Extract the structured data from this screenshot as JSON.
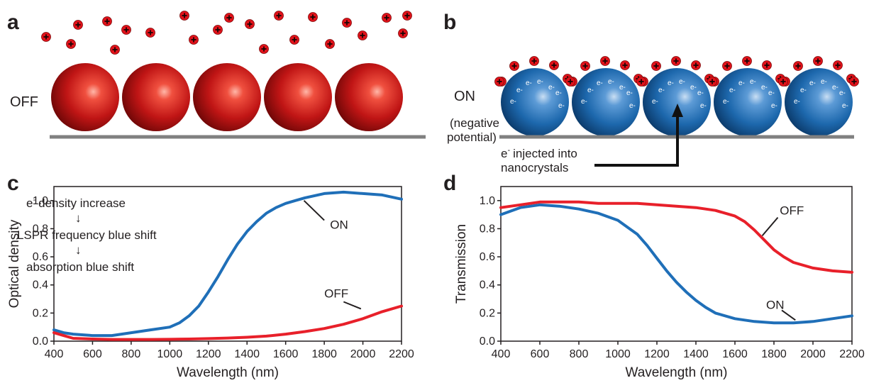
{
  "panels": {
    "a": {
      "letter": "a",
      "state": "OFF"
    },
    "b": {
      "letter": "b",
      "state": "ON",
      "state_sub1": "(negative",
      "state_sub2": "potential)",
      "electron_symbol": "e",
      "electron_charge": "-",
      "injection_line1": "injected into",
      "injection_line2": "nanocrystals"
    },
    "c": {
      "letter": "c",
      "annotation_line1_prefix": "e",
      "annotation_line1_sup": "-",
      "annotation_line1_suffix": "density increase",
      "arrow1": "↓",
      "annotation_line2": "LSPR frequency blue shift",
      "arrow2": "↓",
      "annotation_line3": "absorption blue shift"
    },
    "d": {
      "letter": "d"
    }
  },
  "colors": {
    "on": "#1f6fb8",
    "off": "#e8202a",
    "substrate": "#808080"
  },
  "chart_data": [
    {
      "type": "line",
      "panel": "c",
      "xlabel": "Wavelength (nm)",
      "ylabel": "Optical density",
      "xlim": [
        400,
        2200
      ],
      "ylim": [
        0,
        1.1
      ],
      "xticks": [
        400,
        600,
        800,
        1000,
        1200,
        1400,
        1600,
        1800,
        2000,
        2200
      ],
      "yticks": [
        0.0,
        0.2,
        0.4,
        0.6,
        0.8,
        1.0
      ],
      "series": [
        {
          "name": "ON",
          "color": "#1f6fb8",
          "x": [
            400,
            450,
            500,
            600,
            700,
            800,
            900,
            1000,
            1050,
            1100,
            1150,
            1200,
            1250,
            1300,
            1350,
            1400,
            1450,
            1500,
            1550,
            1600,
            1650,
            1700,
            1800,
            1900,
            2000,
            2100,
            2200
          ],
          "y": [
            0.08,
            0.06,
            0.05,
            0.04,
            0.04,
            0.06,
            0.08,
            0.1,
            0.13,
            0.18,
            0.25,
            0.35,
            0.46,
            0.58,
            0.69,
            0.78,
            0.85,
            0.91,
            0.95,
            0.98,
            1.0,
            1.02,
            1.05,
            1.06,
            1.05,
            1.04,
            1.01
          ]
        },
        {
          "name": "OFF",
          "color": "#e8202a",
          "x": [
            400,
            450,
            500,
            600,
            700,
            800,
            900,
            1000,
            1100,
            1200,
            1300,
            1400,
            1500,
            1600,
            1700,
            1800,
            1900,
            2000,
            2100,
            2200
          ],
          "y": [
            0.06,
            0.04,
            0.02,
            0.015,
            0.012,
            0.012,
            0.012,
            0.013,
            0.015,
            0.018,
            0.022,
            0.028,
            0.036,
            0.05,
            0.068,
            0.09,
            0.12,
            0.16,
            0.21,
            0.25
          ]
        }
      ]
    },
    {
      "type": "line",
      "panel": "d",
      "xlabel": "Wavelength (nm)",
      "ylabel": "Transmission",
      "xlim": [
        400,
        2200
      ],
      "ylim": [
        0,
        1.1
      ],
      "xticks": [
        400,
        600,
        800,
        1000,
        1200,
        1400,
        1600,
        1800,
        2000,
        2200
      ],
      "yticks": [
        0.0,
        0.2,
        0.4,
        0.6,
        0.8,
        1.0
      ],
      "series": [
        {
          "name": "ON",
          "color": "#1f6fb8",
          "x": [
            400,
            500,
            600,
            700,
            800,
            900,
            1000,
            1100,
            1150,
            1200,
            1250,
            1300,
            1350,
            1400,
            1450,
            1500,
            1600,
            1700,
            1800,
            1900,
            2000,
            2100,
            2200
          ],
          "y": [
            0.9,
            0.95,
            0.97,
            0.96,
            0.94,
            0.91,
            0.86,
            0.76,
            0.68,
            0.59,
            0.5,
            0.42,
            0.35,
            0.29,
            0.24,
            0.2,
            0.16,
            0.14,
            0.13,
            0.13,
            0.14,
            0.16,
            0.18
          ]
        },
        {
          "name": "OFF",
          "color": "#e8202a",
          "x": [
            400,
            500,
            600,
            700,
            800,
            900,
            1000,
            1100,
            1200,
            1300,
            1400,
            1500,
            1600,
            1650,
            1700,
            1750,
            1800,
            1850,
            1900,
            2000,
            2100,
            2200
          ],
          "y": [
            0.95,
            0.97,
            0.99,
            0.99,
            0.99,
            0.98,
            0.98,
            0.98,
            0.97,
            0.96,
            0.95,
            0.93,
            0.89,
            0.85,
            0.79,
            0.72,
            0.65,
            0.6,
            0.56,
            0.52,
            0.5,
            0.49
          ]
        }
      ]
    }
  ]
}
